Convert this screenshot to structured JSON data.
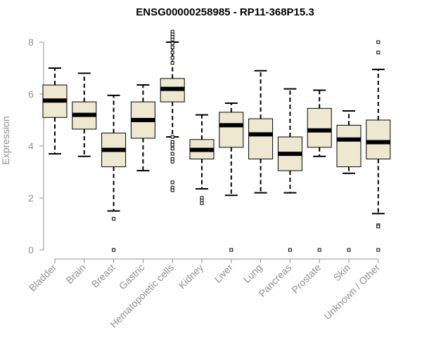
{
  "chart_data": {
    "type": "boxplot",
    "title": "ENSG00000258985 - RP11-368P15.3",
    "xlabel": "",
    "ylabel": "Expression",
    "ylim": [
      0,
      8.2
    ],
    "yticks": [
      0,
      2,
      4,
      6,
      8
    ],
    "grid": false,
    "legend": "none",
    "colors": {
      "box_fill": "#EEE8D0",
      "box_stroke": "#000000",
      "axis": "#909090",
      "text": "#909090"
    },
    "categories": [
      "Bladder",
      "Brain",
      "Breast",
      "Gastric",
      "Hematopoietic cells",
      "Kidney",
      "Liver",
      "Lung",
      "Pancreas",
      "Prostate",
      "Skin",
      "Unknown / Other"
    ],
    "boxes": [
      {
        "min": 3.7,
        "q1": 5.1,
        "median": 5.75,
        "q3": 6.35,
        "max": 7.0,
        "outliers": []
      },
      {
        "min": 3.6,
        "q1": 4.65,
        "median": 5.2,
        "q3": 5.7,
        "max": 6.8,
        "outliers": []
      },
      {
        "min": 1.5,
        "q1": 3.2,
        "median": 3.85,
        "q3": 4.5,
        "max": 5.95,
        "outliers": [
          1.2,
          0.0
        ]
      },
      {
        "min": 3.05,
        "q1": 4.3,
        "median": 5.0,
        "q3": 5.7,
        "max": 6.35,
        "outliers": []
      },
      {
        "min": 4.35,
        "q1": 5.7,
        "median": 6.2,
        "q3": 6.6,
        "max": 8.0,
        "outliers": [
          8.4,
          8.3,
          8.2,
          8.1,
          7.95,
          7.8,
          7.6,
          7.4,
          7.2,
          4.35,
          4.15,
          4.05,
          3.9,
          3.7,
          3.5,
          3.4,
          2.6,
          2.4,
          2.3
        ]
      },
      {
        "min": 2.35,
        "q1": 3.5,
        "median": 3.85,
        "q3": 4.25,
        "max": 5.2,
        "outliers": [
          2.0,
          1.9,
          1.8
        ]
      },
      {
        "min": 2.1,
        "q1": 3.95,
        "median": 4.8,
        "q3": 5.3,
        "max": 5.65,
        "outliers": [
          0.0
        ]
      },
      {
        "min": 2.2,
        "q1": 3.5,
        "median": 4.45,
        "q3": 5.05,
        "max": 6.9,
        "outliers": []
      },
      {
        "min": 2.2,
        "q1": 3.05,
        "median": 3.7,
        "q3": 4.35,
        "max": 6.2,
        "outliers": [
          0.0
        ]
      },
      {
        "min": 3.6,
        "q1": 3.95,
        "median": 4.6,
        "q3": 5.45,
        "max": 6.15,
        "outliers": [
          0.0
        ]
      },
      {
        "min": 2.95,
        "q1": 3.2,
        "median": 4.25,
        "q3": 4.8,
        "max": 5.35,
        "outliers": [
          0.0
        ]
      },
      {
        "min": 1.4,
        "q1": 3.5,
        "median": 4.15,
        "q3": 5.0,
        "max": 6.95,
        "outliers": [
          8.0,
          7.6,
          0.95,
          0.9,
          0.0
        ]
      }
    ]
  }
}
